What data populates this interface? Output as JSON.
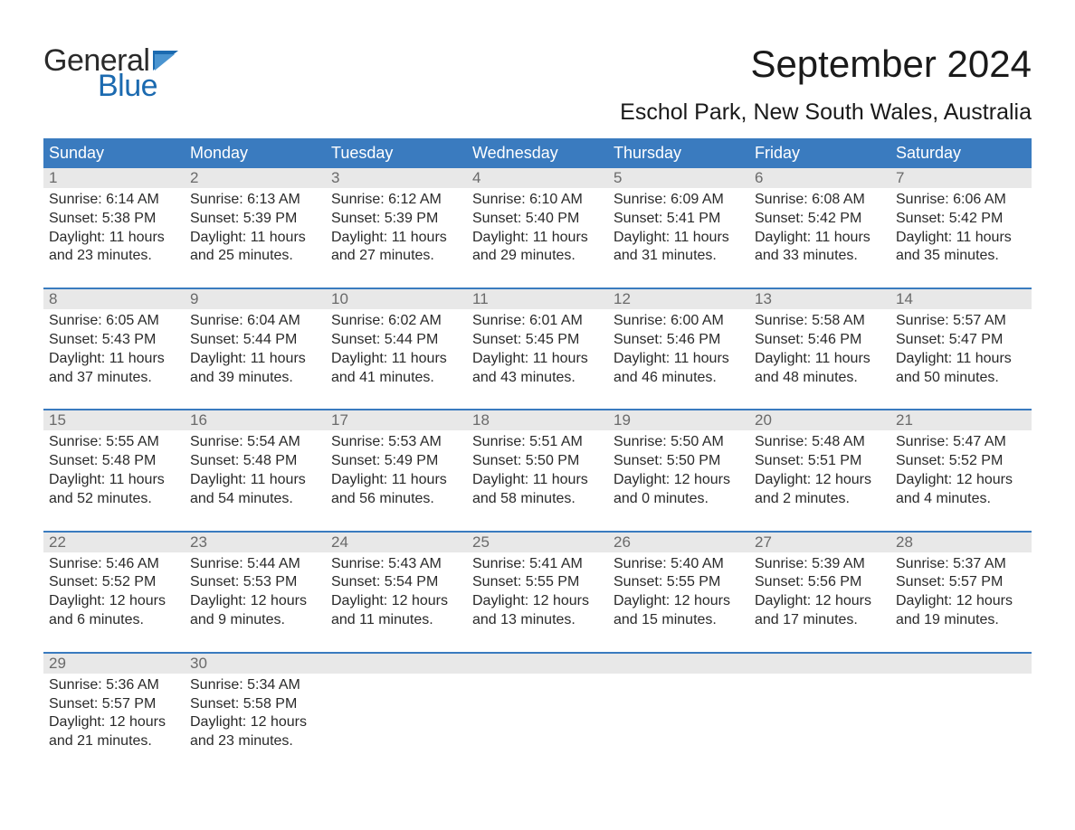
{
  "colors": {
    "header_bg": "#3a7bbf",
    "header_text": "#ffffff",
    "daynum_bg": "#e8e8e8",
    "daynum_text": "#6a6a6a",
    "body_text": "#2a2a2a",
    "week_border": "#3a7bbf",
    "logo_dark": "#2a2a2a",
    "logo_blue": "#1b6ab0",
    "background": "#ffffff"
  },
  "logo": {
    "top": "General",
    "bottom": "Blue"
  },
  "title": "September 2024",
  "location": "Eschol Park, New South Wales, Australia",
  "weekdays": [
    "Sunday",
    "Monday",
    "Tuesday",
    "Wednesday",
    "Thursday",
    "Friday",
    "Saturday"
  ],
  "weeks": [
    {
      "days": [
        {
          "num": "1",
          "sunrise": "Sunrise: 6:14 AM",
          "sunset": "Sunset: 5:38 PM",
          "day1": "Daylight: 11 hours",
          "day2": "and 23 minutes."
        },
        {
          "num": "2",
          "sunrise": "Sunrise: 6:13 AM",
          "sunset": "Sunset: 5:39 PM",
          "day1": "Daylight: 11 hours",
          "day2": "and 25 minutes."
        },
        {
          "num": "3",
          "sunrise": "Sunrise: 6:12 AM",
          "sunset": "Sunset: 5:39 PM",
          "day1": "Daylight: 11 hours",
          "day2": "and 27 minutes."
        },
        {
          "num": "4",
          "sunrise": "Sunrise: 6:10 AM",
          "sunset": "Sunset: 5:40 PM",
          "day1": "Daylight: 11 hours",
          "day2": "and 29 minutes."
        },
        {
          "num": "5",
          "sunrise": "Sunrise: 6:09 AM",
          "sunset": "Sunset: 5:41 PM",
          "day1": "Daylight: 11 hours",
          "day2": "and 31 minutes."
        },
        {
          "num": "6",
          "sunrise": "Sunrise: 6:08 AM",
          "sunset": "Sunset: 5:42 PM",
          "day1": "Daylight: 11 hours",
          "day2": "and 33 minutes."
        },
        {
          "num": "7",
          "sunrise": "Sunrise: 6:06 AM",
          "sunset": "Sunset: 5:42 PM",
          "day1": "Daylight: 11 hours",
          "day2": "and 35 minutes."
        }
      ]
    },
    {
      "days": [
        {
          "num": "8",
          "sunrise": "Sunrise: 6:05 AM",
          "sunset": "Sunset: 5:43 PM",
          "day1": "Daylight: 11 hours",
          "day2": "and 37 minutes."
        },
        {
          "num": "9",
          "sunrise": "Sunrise: 6:04 AM",
          "sunset": "Sunset: 5:44 PM",
          "day1": "Daylight: 11 hours",
          "day2": "and 39 minutes."
        },
        {
          "num": "10",
          "sunrise": "Sunrise: 6:02 AM",
          "sunset": "Sunset: 5:44 PM",
          "day1": "Daylight: 11 hours",
          "day2": "and 41 minutes."
        },
        {
          "num": "11",
          "sunrise": "Sunrise: 6:01 AM",
          "sunset": "Sunset: 5:45 PM",
          "day1": "Daylight: 11 hours",
          "day2": "and 43 minutes."
        },
        {
          "num": "12",
          "sunrise": "Sunrise: 6:00 AM",
          "sunset": "Sunset: 5:46 PM",
          "day1": "Daylight: 11 hours",
          "day2": "and 46 minutes."
        },
        {
          "num": "13",
          "sunrise": "Sunrise: 5:58 AM",
          "sunset": "Sunset: 5:46 PM",
          "day1": "Daylight: 11 hours",
          "day2": "and 48 minutes."
        },
        {
          "num": "14",
          "sunrise": "Sunrise: 5:57 AM",
          "sunset": "Sunset: 5:47 PM",
          "day1": "Daylight: 11 hours",
          "day2": "and 50 minutes."
        }
      ]
    },
    {
      "days": [
        {
          "num": "15",
          "sunrise": "Sunrise: 5:55 AM",
          "sunset": "Sunset: 5:48 PM",
          "day1": "Daylight: 11 hours",
          "day2": "and 52 minutes."
        },
        {
          "num": "16",
          "sunrise": "Sunrise: 5:54 AM",
          "sunset": "Sunset: 5:48 PM",
          "day1": "Daylight: 11 hours",
          "day2": "and 54 minutes."
        },
        {
          "num": "17",
          "sunrise": "Sunrise: 5:53 AM",
          "sunset": "Sunset: 5:49 PM",
          "day1": "Daylight: 11 hours",
          "day2": "and 56 minutes."
        },
        {
          "num": "18",
          "sunrise": "Sunrise: 5:51 AM",
          "sunset": "Sunset: 5:50 PM",
          "day1": "Daylight: 11 hours",
          "day2": "and 58 minutes."
        },
        {
          "num": "19",
          "sunrise": "Sunrise: 5:50 AM",
          "sunset": "Sunset: 5:50 PM",
          "day1": "Daylight: 12 hours",
          "day2": "and 0 minutes."
        },
        {
          "num": "20",
          "sunrise": "Sunrise: 5:48 AM",
          "sunset": "Sunset: 5:51 PM",
          "day1": "Daylight: 12 hours",
          "day2": "and 2 minutes."
        },
        {
          "num": "21",
          "sunrise": "Sunrise: 5:47 AM",
          "sunset": "Sunset: 5:52 PM",
          "day1": "Daylight: 12 hours",
          "day2": "and 4 minutes."
        }
      ]
    },
    {
      "days": [
        {
          "num": "22",
          "sunrise": "Sunrise: 5:46 AM",
          "sunset": "Sunset: 5:52 PM",
          "day1": "Daylight: 12 hours",
          "day2": "and 6 minutes."
        },
        {
          "num": "23",
          "sunrise": "Sunrise: 5:44 AM",
          "sunset": "Sunset: 5:53 PM",
          "day1": "Daylight: 12 hours",
          "day2": "and 9 minutes."
        },
        {
          "num": "24",
          "sunrise": "Sunrise: 5:43 AM",
          "sunset": "Sunset: 5:54 PM",
          "day1": "Daylight: 12 hours",
          "day2": "and 11 minutes."
        },
        {
          "num": "25",
          "sunrise": "Sunrise: 5:41 AM",
          "sunset": "Sunset: 5:55 PM",
          "day1": "Daylight: 12 hours",
          "day2": "and 13 minutes."
        },
        {
          "num": "26",
          "sunrise": "Sunrise: 5:40 AM",
          "sunset": "Sunset: 5:55 PM",
          "day1": "Daylight: 12 hours",
          "day2": "and 15 minutes."
        },
        {
          "num": "27",
          "sunrise": "Sunrise: 5:39 AM",
          "sunset": "Sunset: 5:56 PM",
          "day1": "Daylight: 12 hours",
          "day2": "and 17 minutes."
        },
        {
          "num": "28",
          "sunrise": "Sunrise: 5:37 AM",
          "sunset": "Sunset: 5:57 PM",
          "day1": "Daylight: 12 hours",
          "day2": "and 19 minutes."
        }
      ]
    },
    {
      "days": [
        {
          "num": "29",
          "sunrise": "Sunrise: 5:36 AM",
          "sunset": "Sunset: 5:57 PM",
          "day1": "Daylight: 12 hours",
          "day2": "and 21 minutes."
        },
        {
          "num": "30",
          "sunrise": "Sunrise: 5:34 AM",
          "sunset": "Sunset: 5:58 PM",
          "day1": "Daylight: 12 hours",
          "day2": "and 23 minutes."
        },
        {
          "empty": true
        },
        {
          "empty": true
        },
        {
          "empty": true
        },
        {
          "empty": true
        },
        {
          "empty": true
        }
      ]
    }
  ]
}
